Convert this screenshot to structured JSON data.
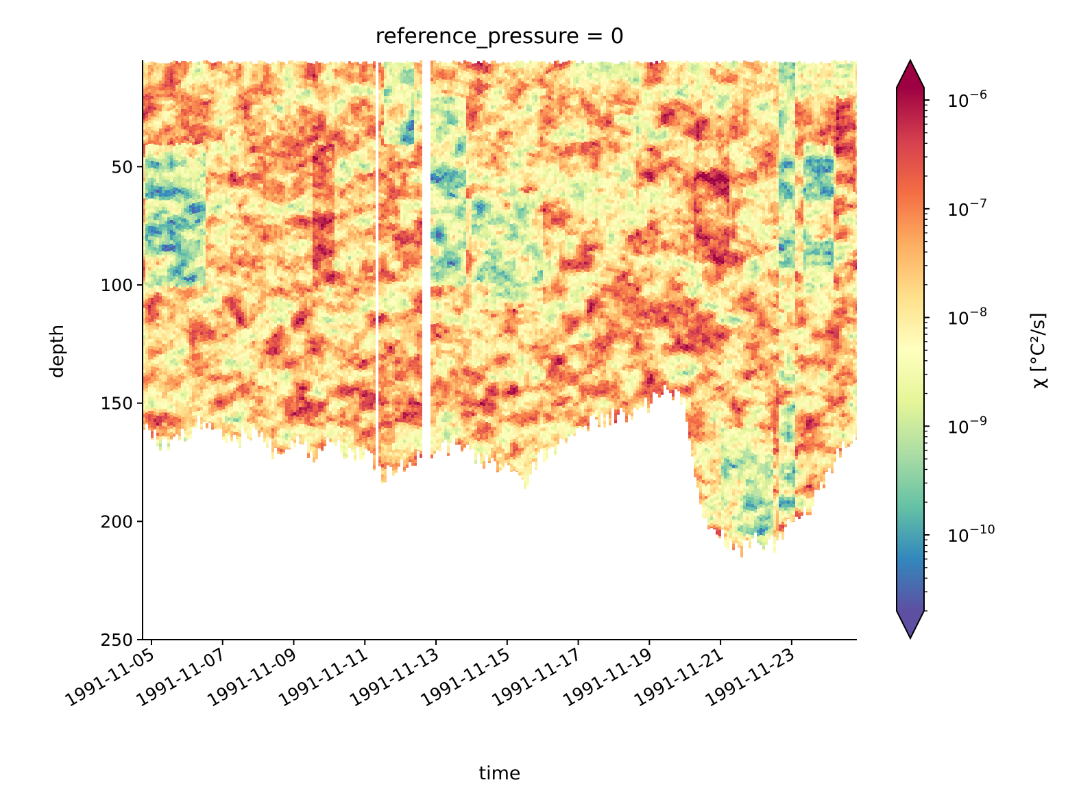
{
  "chart_data": {
    "type": "heatmap",
    "title": "reference_pressure = 0",
    "xlabel": "time",
    "ylabel": "depth",
    "x_range": [
      "1991-11-04T18:00",
      "1991-11-24T20:00"
    ],
    "y_range": [
      250,
      5
    ],
    "y_inverted": true,
    "x_ticks": [
      "1991-11-05",
      "1991-11-07",
      "1991-11-09",
      "1991-11-11",
      "1991-11-13",
      "1991-11-15",
      "1991-11-17",
      "1991-11-19",
      "1991-11-21",
      "1991-11-23"
    ],
    "y_ticks": [
      50,
      100,
      150,
      200,
      250
    ],
    "colorbar": {
      "label": "χ [°C²/s]",
      "scale": "log",
      "colormap": "Spectral_r",
      "range": [
        2e-11,
        1.3e-06
      ],
      "extend": "both",
      "ticks": [
        {
          "value": 1e-10,
          "mantissa": "10",
          "exponent": "−10"
        },
        {
          "value": 1e-09,
          "mantissa": "10",
          "exponent": "−9"
        },
        {
          "value": 1e-08,
          "mantissa": "10",
          "exponent": "−8"
        },
        {
          "value": 1e-07,
          "mantissa": "10",
          "exponent": "−7"
        },
        {
          "value": 1e-06,
          "mantissa": "10",
          "exponent": "−6"
        }
      ],
      "colors": [
        "#5e4fa2",
        "#3288bd",
        "#66c2a5",
        "#abdda4",
        "#e6f598",
        "#ffffbf",
        "#fee08b",
        "#fdae61",
        "#f46d43",
        "#d53e4f",
        "#9e0142"
      ]
    },
    "data_top_depth": 5,
    "data_bottom_depth": [
      {
        "t": "1991-11-04T19:00",
        "depth": 160
      },
      {
        "t": "1991-11-05T12:00",
        "depth": 170
      },
      {
        "t": "1991-11-06T00:00",
        "depth": 162
      },
      {
        "t": "1991-11-06T12:00",
        "depth": 158
      },
      {
        "t": "1991-11-07T00:00",
        "depth": 163
      },
      {
        "t": "1991-11-07T12:00",
        "depth": 165
      },
      {
        "t": "1991-11-08T00:00",
        "depth": 162
      },
      {
        "t": "1991-11-08T12:00",
        "depth": 172
      },
      {
        "t": "1991-11-09T00:00",
        "depth": 166
      },
      {
        "t": "1991-11-09T12:00",
        "depth": 172
      },
      {
        "t": "1991-11-10T00:00",
        "depth": 168
      },
      {
        "t": "1991-11-10T12:00",
        "depth": 170
      },
      {
        "t": "1991-11-11T00:00",
        "depth": 172
      },
      {
        "t": "1991-11-11T12:00",
        "depth": 180
      },
      {
        "t": "1991-11-12T00:00",
        "depth": 178
      },
      {
        "t": "1991-11-12T12:00",
        "depth": 174
      },
      {
        "t": "1991-11-13T00:00",
        "depth": 170
      },
      {
        "t": "1991-11-13T12:00",
        "depth": 168
      },
      {
        "t": "1991-11-14T00:00",
        "depth": 172
      },
      {
        "t": "1991-11-14T12:00",
        "depth": 176
      },
      {
        "t": "1991-11-15T00:00",
        "depth": 176
      },
      {
        "t": "1991-11-15T12:00",
        "depth": 184
      },
      {
        "t": "1991-11-16T00:00",
        "depth": 172
      },
      {
        "t": "1991-11-16T12:00",
        "depth": 168
      },
      {
        "t": "1991-11-17T00:00",
        "depth": 160
      },
      {
        "t": "1991-11-17T12:00",
        "depth": 158
      },
      {
        "t": "1991-11-18T00:00",
        "depth": 156
      },
      {
        "t": "1991-11-18T12:00",
        "depth": 155
      },
      {
        "t": "1991-11-19T00:00",
        "depth": 150
      },
      {
        "t": "1991-11-19T12:00",
        "depth": 142
      },
      {
        "t": "1991-11-20T00:00",
        "depth": 152
      },
      {
        "t": "1991-11-20T12:00",
        "depth": 198
      },
      {
        "t": "1991-11-21T00:00",
        "depth": 206
      },
      {
        "t": "1991-11-21T12:00",
        "depth": 214
      },
      {
        "t": "1991-11-22T00:00",
        "depth": 208
      },
      {
        "t": "1991-11-22T12:00",
        "depth": 210
      },
      {
        "t": "1991-11-23T00:00",
        "depth": 200
      },
      {
        "t": "1991-11-23T12:00",
        "depth": 194
      },
      {
        "t": "1991-11-24T00:00",
        "depth": 180
      },
      {
        "t": "1991-11-24T12:00",
        "depth": 168
      },
      {
        "t": "1991-11-24T19:00",
        "depth": 162
      }
    ],
    "data_gaps": [
      {
        "start": "1991-11-11T08:00",
        "end": "1991-11-11T10:00"
      },
      {
        "start": "1991-11-12T14:00",
        "end": "1991-11-12T20:00"
      }
    ],
    "regions": [
      {
        "t0": "1991-11-04T19:00",
        "t1": "1991-11-06T12:00",
        "d0": 40,
        "d1": 100,
        "log_chi": -10.2
      },
      {
        "t0": "1991-11-07T06:00",
        "t1": "1991-11-08T06:00",
        "d0": 30,
        "d1": 110,
        "log_chi": -7.0
      },
      {
        "t0": "1991-11-09T12:00",
        "t1": "1991-11-10T04:00",
        "d0": 40,
        "d1": 100,
        "log_chi": -6.1
      },
      {
        "t0": "1991-11-11T12:00",
        "t1": "1991-11-12T10:00",
        "d0": 5,
        "d1": 40,
        "log_chi": -10.0
      },
      {
        "t0": "1991-11-12T20:00",
        "t1": "1991-11-13T20:00",
        "d0": 20,
        "d1": 100,
        "log_chi": -10.0
      },
      {
        "t0": "1991-11-14T00:00",
        "t1": "1991-11-16T00:00",
        "d0": 60,
        "d1": 110,
        "log_chi": -9.4
      },
      {
        "t0": "1991-11-20T06:00",
        "t1": "1991-11-21T06:00",
        "d0": 40,
        "d1": 90,
        "log_chi": -6.3
      },
      {
        "t0": "1991-11-21T00:00",
        "t1": "1991-11-22T12:00",
        "d0": 160,
        "d1": 205,
        "log_chi": -9.8
      },
      {
        "t0": "1991-11-22T16:00",
        "t1": "1991-11-23T02:00",
        "d0": 5,
        "d1": 200,
        "log_chi": -10.0
      },
      {
        "t0": "1991-11-23T08:00",
        "t1": "1991-11-24T04:00",
        "d0": 40,
        "d1": 100,
        "log_chi": -10.0
      },
      {
        "t0": "1991-11-24T06:00",
        "t1": "1991-11-24T19:00",
        "d0": 20,
        "d1": 60,
        "log_chi": -6.3
      },
      {
        "t0": "1991-11-04T19:00",
        "t1": "1991-11-24T19:00",
        "d0": 110,
        "d1": 150,
        "log_chi": -7.3
      }
    ]
  }
}
